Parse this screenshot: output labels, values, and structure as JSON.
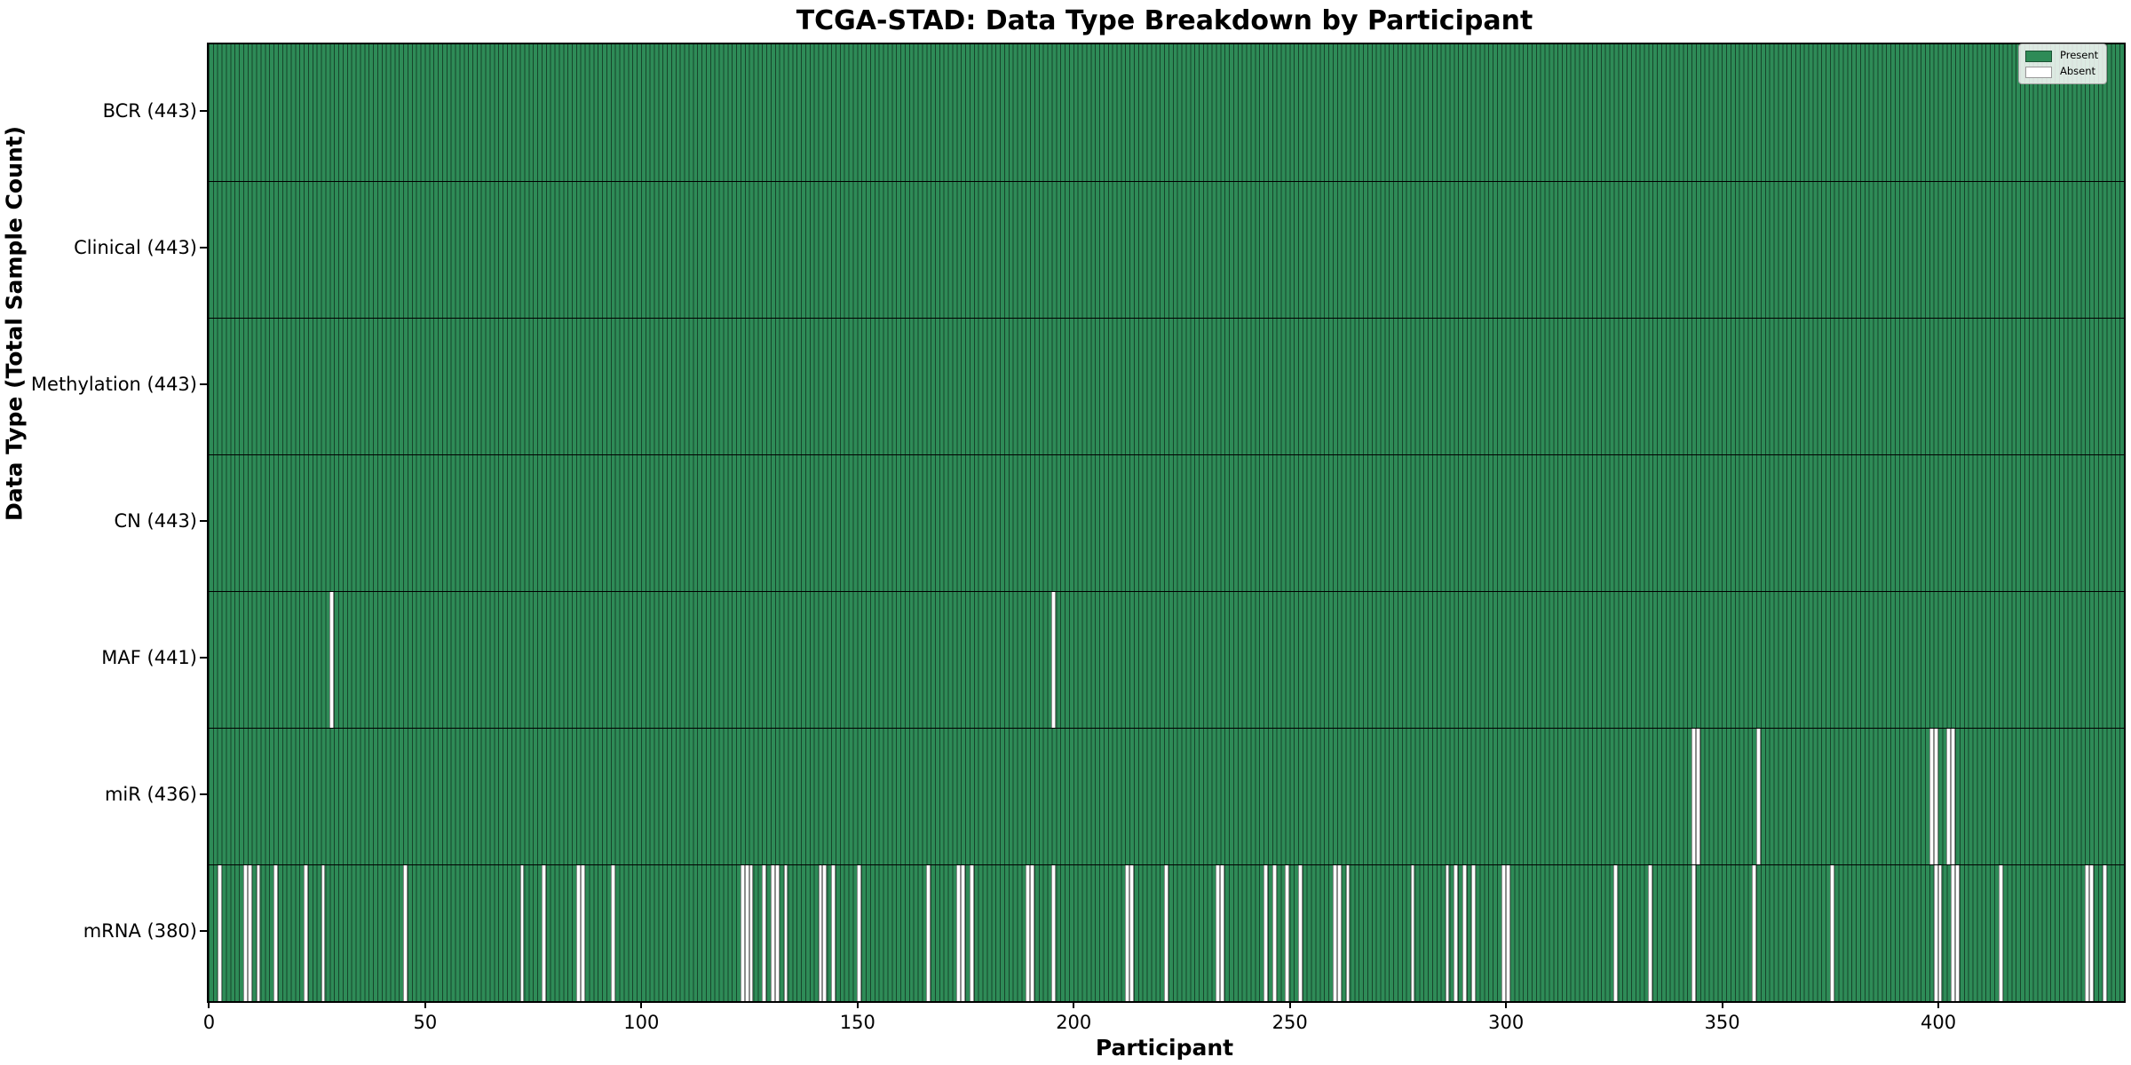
{
  "figure": {
    "title": "TCGA-STAD: Data Type Breakdown by Participant",
    "x_axis_title": "Participant",
    "y_axis_title": "Data Type (Total Sample Count)"
  },
  "legend": {
    "position": "upper right",
    "items": [
      {
        "label": "Present",
        "color": "#2e8b57"
      },
      {
        "label": "Absent",
        "color": "#ffffff"
      }
    ]
  },
  "chart_data": {
    "type": "heatmap",
    "title": "TCGA-STAD: Data Type Breakdown by Participant",
    "xlabel": "Participant",
    "ylabel": "Data Type (Total Sample Count)",
    "n_participants": 443,
    "xlim": [
      -0.5,
      442.5
    ],
    "x_ticks": [
      0,
      50,
      100,
      150,
      200,
      250,
      300,
      350,
      400
    ],
    "present_color": "#2e8b57",
    "absent_color": "#ffffff",
    "cell_edge_color": "rgba(0,0,0,0.5)",
    "legend_entries": [
      "Present",
      "Absent"
    ],
    "rows": [
      {
        "name": "BCR",
        "total": 443,
        "label": "BCR (443)",
        "absent_participants": []
      },
      {
        "name": "Clinical",
        "total": 443,
        "label": "Clinical (443)",
        "absent_participants": []
      },
      {
        "name": "Methylation",
        "total": 443,
        "label": "Methylation (443)",
        "absent_participants": []
      },
      {
        "name": "CN",
        "total": 443,
        "label": "CN (443)",
        "absent_participants": []
      },
      {
        "name": "MAF",
        "total": 441,
        "label": "MAF (441)",
        "absent_participants": [
          28,
          195
        ]
      },
      {
        "name": "miR",
        "total": 436,
        "label": "miR (436)",
        "absent_participants": [
          343,
          344,
          358,
          398,
          399,
          402,
          403
        ]
      },
      {
        "name": "mRNA",
        "total": 380,
        "label": "mRNA (380)",
        "absent_participants": [
          2,
          8,
          9,
          11,
          15,
          22,
          26,
          45,
          72,
          77,
          85,
          86,
          93,
          123,
          124,
          125,
          128,
          130,
          131,
          133,
          141,
          142,
          144,
          150,
          166,
          173,
          174,
          176,
          189,
          190,
          195,
          212,
          213,
          221,
          233,
          234,
          244,
          246,
          249,
          252,
          260,
          261,
          263,
          278,
          286,
          288,
          290,
          292,
          299,
          300,
          325,
          333,
          343,
          357,
          375,
          399,
          400,
          403,
          404,
          414,
          434,
          435,
          438
        ]
      }
    ]
  }
}
